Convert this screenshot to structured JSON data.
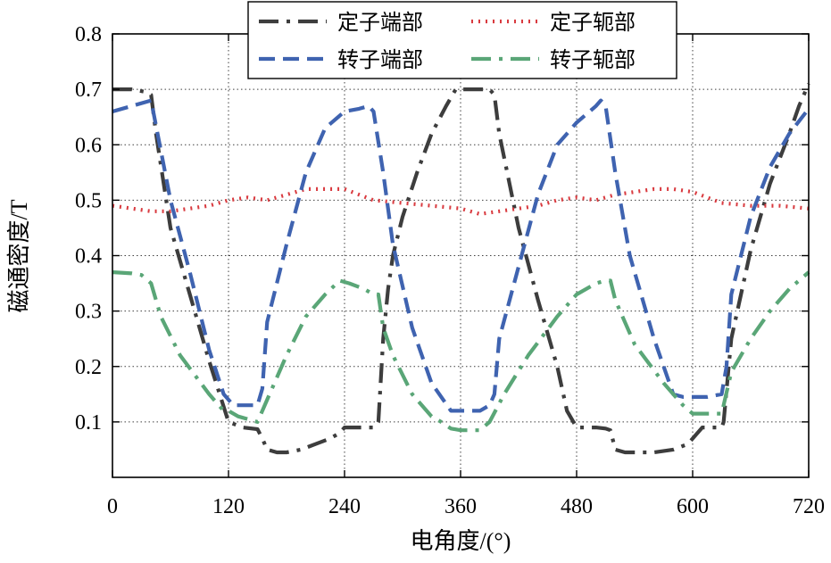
{
  "chart_data": {
    "type": "line",
    "xlabel": "电角度/(°)",
    "ylabel": "磁通密度/T",
    "xlim": [
      0,
      720
    ],
    "ylim": [
      0,
      0.8
    ],
    "xticks": [
      0,
      120,
      240,
      360,
      480,
      600,
      720
    ],
    "yticks": [
      0.1,
      0.2,
      0.3,
      0.4,
      0.5,
      0.6,
      0.7,
      0.8
    ],
    "xtick_labels": [
      "0",
      "120",
      "240",
      "360",
      "480",
      "600",
      "720"
    ],
    "ytick_labels": [
      "0.1",
      "0.2",
      "0.3",
      "0.4",
      "0.5",
      "0.6",
      "0.7",
      "0.8"
    ],
    "grid": true,
    "legend_position": "top",
    "series": [
      {
        "name": "定子端部",
        "color": "#3d3d3d",
        "dash": "dashdot",
        "x": [
          0,
          20,
          35,
          40,
          45,
          60,
          80,
          100,
          120,
          135,
          150,
          155,
          160,
          170,
          180,
          195,
          210,
          225,
          235,
          240,
          250,
          260,
          270,
          275,
          280,
          285,
          290,
          300,
          315,
          330,
          345,
          355,
          360,
          370,
          380,
          390,
          395,
          400,
          420,
          440,
          460,
          470,
          480,
          500,
          510,
          515,
          520,
          530,
          540,
          560,
          580,
          595,
          600,
          610,
          620,
          630,
          632,
          640,
          660,
          680,
          700,
          710,
          720
        ],
        "y": [
          0.7,
          0.7,
          0.695,
          0.69,
          0.62,
          0.45,
          0.33,
          0.21,
          0.1,
          0.09,
          0.087,
          0.07,
          0.05,
          0.045,
          0.045,
          0.05,
          0.06,
          0.07,
          0.08,
          0.09,
          0.09,
          0.09,
          0.09,
          0.1,
          0.25,
          0.34,
          0.4,
          0.47,
          0.55,
          0.62,
          0.67,
          0.7,
          0.7,
          0.7,
          0.7,
          0.7,
          0.69,
          0.62,
          0.45,
          0.32,
          0.2,
          0.12,
          0.09,
          0.09,
          0.088,
          0.085,
          0.05,
          0.045,
          0.045,
          0.045,
          0.05,
          0.06,
          0.07,
          0.09,
          0.09,
          0.09,
          0.1,
          0.25,
          0.41,
          0.53,
          0.62,
          0.67,
          0.71
        ]
      },
      {
        "name": "定子轭部",
        "color": "#d93a3f",
        "dash": "dotted",
        "x": [
          0,
          20,
          40,
          60,
          80,
          100,
          120,
          140,
          160,
          180,
          200,
          220,
          240,
          255,
          270,
          300,
          330,
          360,
          380,
          400,
          420,
          440,
          460,
          480,
          500,
          520,
          540,
          560,
          580,
          600,
          615,
          630,
          660,
          690,
          720
        ],
        "y": [
          0.49,
          0.485,
          0.48,
          0.48,
          0.485,
          0.49,
          0.5,
          0.505,
          0.5,
          0.51,
          0.52,
          0.52,
          0.52,
          0.51,
          0.5,
          0.495,
          0.49,
          0.485,
          0.475,
          0.48,
          0.485,
          0.49,
          0.5,
          0.505,
          0.5,
          0.51,
          0.515,
          0.52,
          0.52,
          0.515,
          0.505,
          0.495,
          0.49,
          0.49,
          0.485
        ]
      },
      {
        "name": "转子端部",
        "color": "#3f63b0",
        "dash": "dashed",
        "x": [
          0,
          20,
          40,
          60,
          80,
          100,
          115,
          125,
          140,
          150,
          155,
          160,
          180,
          200,
          220,
          240,
          255,
          265,
          270,
          280,
          290,
          310,
          330,
          350,
          365,
          380,
          390,
          395,
          400,
          420,
          440,
          460,
          480,
          500,
          505,
          510,
          520,
          535,
          560,
          580,
          590,
          600,
          615,
          630,
          635,
          640,
          660,
          680,
          700,
          720
        ],
        "y": [
          0.66,
          0.67,
          0.68,
          0.5,
          0.37,
          0.23,
          0.15,
          0.13,
          0.13,
          0.13,
          0.16,
          0.28,
          0.42,
          0.55,
          0.63,
          0.66,
          0.665,
          0.67,
          0.66,
          0.55,
          0.42,
          0.27,
          0.17,
          0.12,
          0.12,
          0.12,
          0.13,
          0.15,
          0.25,
          0.38,
          0.51,
          0.6,
          0.64,
          0.67,
          0.68,
          0.67,
          0.55,
          0.4,
          0.25,
          0.15,
          0.145,
          0.145,
          0.145,
          0.15,
          0.2,
          0.33,
          0.47,
          0.56,
          0.62,
          0.665
        ]
      },
      {
        "name": "转子轭部",
        "color": "#5aa677",
        "dash": "dashdot",
        "x": [
          0,
          20,
          30,
          40,
          50,
          70,
          100,
          115,
          120,
          130,
          140,
          150,
          160,
          180,
          200,
          220,
          235,
          245,
          260,
          270,
          275,
          280,
          290,
          310,
          330,
          340,
          350,
          360,
          370,
          380,
          390,
          405,
          430,
          460,
          480,
          500,
          510,
          515,
          520,
          540,
          570,
          590,
          600,
          610,
          615,
          625,
          630,
          640,
          660,
          680,
          700,
          720
        ],
        "y": [
          0.37,
          0.368,
          0.365,
          0.35,
          0.29,
          0.22,
          0.15,
          0.12,
          0.12,
          0.11,
          0.105,
          0.1,
          0.14,
          0.22,
          0.29,
          0.33,
          0.355,
          0.35,
          0.34,
          0.33,
          0.33,
          0.27,
          0.22,
          0.15,
          0.11,
          0.1,
          0.088,
          0.085,
          0.085,
          0.085,
          0.1,
          0.15,
          0.22,
          0.29,
          0.33,
          0.35,
          0.355,
          0.355,
          0.32,
          0.24,
          0.17,
          0.13,
          0.115,
          0.115,
          0.115,
          0.115,
          0.115,
          0.19,
          0.25,
          0.3,
          0.34,
          0.37
        ]
      }
    ]
  }
}
